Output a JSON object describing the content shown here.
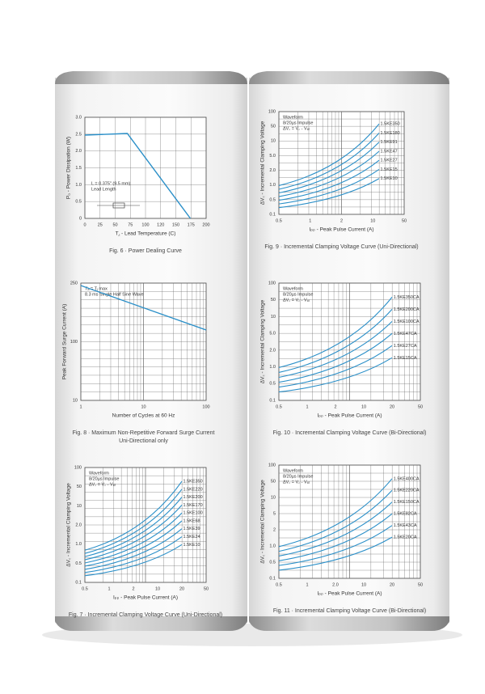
{
  "panels": [
    {
      "caption": [
        "Fig. 6 · Power Dealing Curve"
      ],
      "x_label": "T⁁ - Lead Temperature (C)",
      "y_label": "P₀ - Power Dissipation (W)",
      "yticks": [
        "3.0",
        "2.5",
        "2.0",
        "1.5",
        "1.0",
        "0.5",
        "0"
      ],
      "xticks": [
        "0",
        "25",
        "50",
        "75",
        "100",
        "120",
        "150",
        "175",
        "200"
      ],
      "annotations": [
        "L = 0.375\" (9.5 mm)",
        "Lead Length"
      ],
      "legend": []
    },
    {
      "caption": [
        "Fig. 8 · Maximum Non-Repetitive Forward Surge Current",
        "Uni-Directional only"
      ],
      "x_label": "Number of Cycles at 60 Hz",
      "y_label": "Peak Forward Surge Current (A)",
      "yticks": [
        "250",
        "100",
        "10"
      ],
      "xticks": [
        "1",
        "10",
        "100"
      ],
      "annotations": [
        "Tₐ = Tⱼ max",
        "8.3 ms Single Half Sine Wave"
      ],
      "legend": []
    },
    {
      "caption": [
        "Fig. 7 · Incremental Clamping Voltage Curve (Uni-Directional)"
      ],
      "x_label": "Iₚₚ - Peak Pulse Current (A)",
      "y_label": "ΔV꜀ - Incremental Clamping Voltage",
      "yticks": [
        "100",
        "50",
        "10",
        "2.0",
        "1.0",
        "0.5",
        "0.1"
      ],
      "xticks": [
        "0.5",
        "1",
        "2",
        "10",
        "20",
        "50"
      ],
      "annotations": [
        "Waveform",
        "8/20µs Impulse",
        "ΔV꜀ = V꜀ - V₈ᵣ"
      ],
      "legend": [
        "1.5KE350",
        "1.5KE220",
        "1.5KE200",
        "1.5KE170",
        "1.5KE100",
        "1.5KE68",
        "1.5KE39",
        "1.5KE24",
        "1.5KE10"
      ]
    },
    {
      "caption": [
        "Fig. 9 · Incremental Clamping Voltage Curve (Uni-Directional)"
      ],
      "x_label": "Iₚₚ - Peak Pulse Current (A)",
      "y_label": "ΔV꜀ - Incremental Clamping Voltage",
      "yticks": [
        "100",
        "50",
        "10",
        "5.0",
        "2.0",
        "1.0",
        "0.5",
        "0.1"
      ],
      "xticks": [
        "0.5",
        "1",
        "2",
        "10",
        "50"
      ],
      "annotations": [
        "Waveform",
        "8/20µs Impulse",
        "ΔV꜀ = V꜀ - V₈ᵣ"
      ],
      "legend": [
        "1.5KE350",
        "1.5KE180",
        "1.5KE91",
        "1.5KE47",
        "1.5KE27",
        "1.5KE15",
        "1.5KE10"
      ]
    },
    {
      "caption": [
        "Fig. 10 · Incremental Clamping Voltage Curve (Bi-Directional)"
      ],
      "x_label": "Iₚₚ - Peak Pulse Current (A)",
      "y_label": "ΔV꜀ - Incremental Clamping Voltage",
      "yticks": [
        "100",
        "50",
        "10",
        "5.0",
        "2.0",
        "1.0",
        "0.5",
        "0.1"
      ],
      "xticks": [
        "0.5",
        "1",
        "2",
        "10",
        "20",
        "50"
      ],
      "annotations": [
        "Waveform",
        "8/20µs Impulse",
        "ΔV꜀ = V꜀ - V₈ᵣ"
      ],
      "legend": [
        "1.5KE350CA",
        "1.5KE200CA",
        "1.5KE100CA",
        "1.5KE47CA",
        "1.5KE27CA",
        "1.5KE15CA"
      ]
    },
    {
      "caption": [
        "Fig. 11 · Incremental Clamping Voltage Curve (Bi-Directional)"
      ],
      "x_label": "Iₚₚ - Peak Pulse Current (A)",
      "y_label": "ΔV꜀ - Incremental Clamping Voltage",
      "yticks": [
        "100",
        "50",
        "10",
        "5",
        "2",
        "1.0",
        "0.5",
        "0.1"
      ],
      "xticks": [
        "0.5",
        "1",
        "2.0",
        "10",
        "20",
        "50"
      ],
      "annotations": [
        "Waveform",
        "8/20µs Impulse",
        "ΔV꜀ = V꜀ - V₈ᵣ"
      ],
      "legend": [
        "1.5KE400CA",
        "1.5KE220CA",
        "1.5KE150CA",
        "1.5KE82CA",
        "1.5KE43CA",
        "1.5KE20CA"
      ]
    }
  ]
}
